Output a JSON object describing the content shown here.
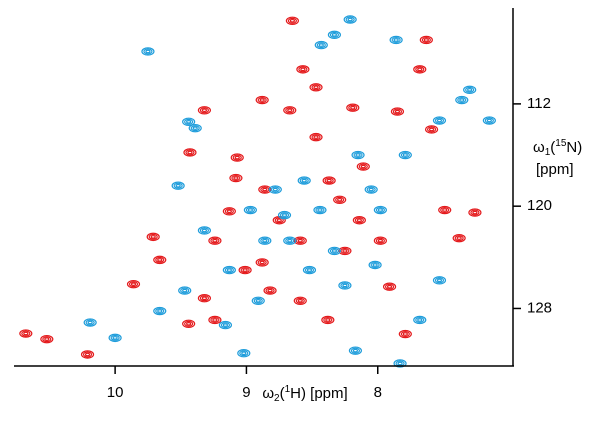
{
  "chart_data": {
    "type": "contour-peaks",
    "x_label": [
      "ω",
      "2",
      "(",
      "1",
      "H) [ppm]"
    ],
    "y_label": [
      "ω",
      "1",
      "(",
      "15",
      "N)"
    ],
    "y_label_unit": "[ppm]",
    "xlim": [
      10.77,
      6.97
    ],
    "ylim": [
      104.5,
      132.5
    ],
    "xticks": [
      10,
      9,
      8
    ],
    "yticks": [
      112,
      120,
      128
    ],
    "series": [
      {
        "color": "#e41a1c",
        "x": [
          10.68,
          10.52,
          10.21,
          9.86,
          9.71,
          9.44,
          9.32,
          9.24,
          9.07,
          9.13,
          9.01,
          8.88,
          8.82,
          8.75,
          8.59,
          8.47,
          8.57,
          8.65,
          8.47,
          8.37,
          8.25,
          8.14,
          7.98,
          7.91,
          7.79,
          7.68,
          7.63,
          7.59,
          7.49,
          7.38,
          7.26,
          8.19,
          9.32,
          9.43,
          9.66,
          8.38,
          8.59,
          8.29,
          8.11,
          7.85,
          8.88,
          8.67,
          9.08,
          8.86,
          9.24
        ],
        "values": [
          129.96,
          130.4,
          131.6,
          126.1,
          122.4,
          129.2,
          127.2,
          122.7,
          116.2,
          120.4,
          125.0,
          124.4,
          126.6,
          121.1,
          122.7,
          110.7,
          109.3,
          105.5,
          114.6,
          118.0,
          123.5,
          121.1,
          122.7,
          126.3,
          130.0,
          109.3,
          107.0,
          114.0,
          120.3,
          122.5,
          120.5,
          112.3,
          112.5,
          115.8,
          124.2,
          128.9,
          127.4,
          119.5,
          116.9,
          112.6,
          111.7,
          112.5,
          117.8,
          118.7,
          128.9
        ]
      },
      {
        "color": "#1f9ddb",
        "x": [
          10.0,
          10.19,
          9.75,
          9.52,
          9.39,
          9.16,
          9.02,
          8.97,
          8.91,
          8.78,
          8.67,
          8.56,
          8.52,
          8.44,
          8.43,
          8.33,
          8.21,
          8.15,
          8.05,
          8.02,
          7.86,
          7.79,
          7.53,
          7.36,
          7.3,
          7.68,
          7.53,
          7.83,
          8.17,
          9.13,
          9.32,
          9.47,
          9.66,
          8.86,
          8.71,
          8.33,
          8.25,
          7.98,
          7.15,
          9.44
        ],
        "values": [
          130.3,
          129.1,
          107.9,
          118.4,
          113.9,
          129.3,
          131.5,
          120.3,
          127.4,
          118.7,
          122.7,
          118.0,
          125.0,
          120.3,
          107.4,
          106.6,
          105.4,
          116.0,
          118.7,
          124.6,
          107.0,
          116.0,
          113.3,
          111.7,
          110.9,
          128.9,
          125.8,
          132.3,
          131.3,
          125.0,
          121.9,
          126.6,
          128.2,
          122.7,
          120.7,
          123.5,
          126.2,
          120.3,
          113.3,
          113.4
        ]
      }
    ]
  }
}
